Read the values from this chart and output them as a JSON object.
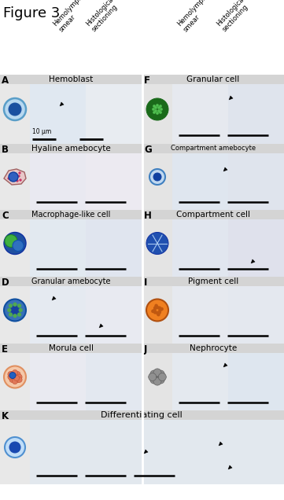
{
  "title": "Figure 3",
  "title_fontsize": 13,
  "figure_width": 3.61,
  "figure_height": 6.36,
  "dpi": 100,
  "bg_color": "#ffffff",
  "panel_bg_left": "#e8e8e8",
  "panel_bg_right": "#e4e4e4",
  "header_color": "#d4d4d4",
  "col_headers": [
    "Hemolymph\nsmear",
    "Histological\nsectioning",
    "Hemolymph\nsmear",
    "Histological\nsectioning"
  ],
  "rows_left": [
    {
      "label": "A",
      "name": "Hemoblast"
    },
    {
      "label": "B",
      "name": "Hyaline amebocyte"
    },
    {
      "label": "C",
      "name": "Macrophage-like cell"
    },
    {
      "label": "D",
      "name": "Granular amebocyte"
    },
    {
      "label": "E",
      "name": "Morula cell"
    }
  ],
  "rows_right": [
    {
      "label": "F",
      "name": "Granular cell"
    },
    {
      "label": "G",
      "name": "Compartment amebocyte"
    },
    {
      "label": "H",
      "name": "Compartment cell"
    },
    {
      "label": "I",
      "name": "Pigment cell"
    },
    {
      "label": "J",
      "name": "Nephrocyte"
    }
  ],
  "row_k": {
    "label": "K",
    "name": "Differentiating cell"
  },
  "scale_bar_text": "10 μm"
}
